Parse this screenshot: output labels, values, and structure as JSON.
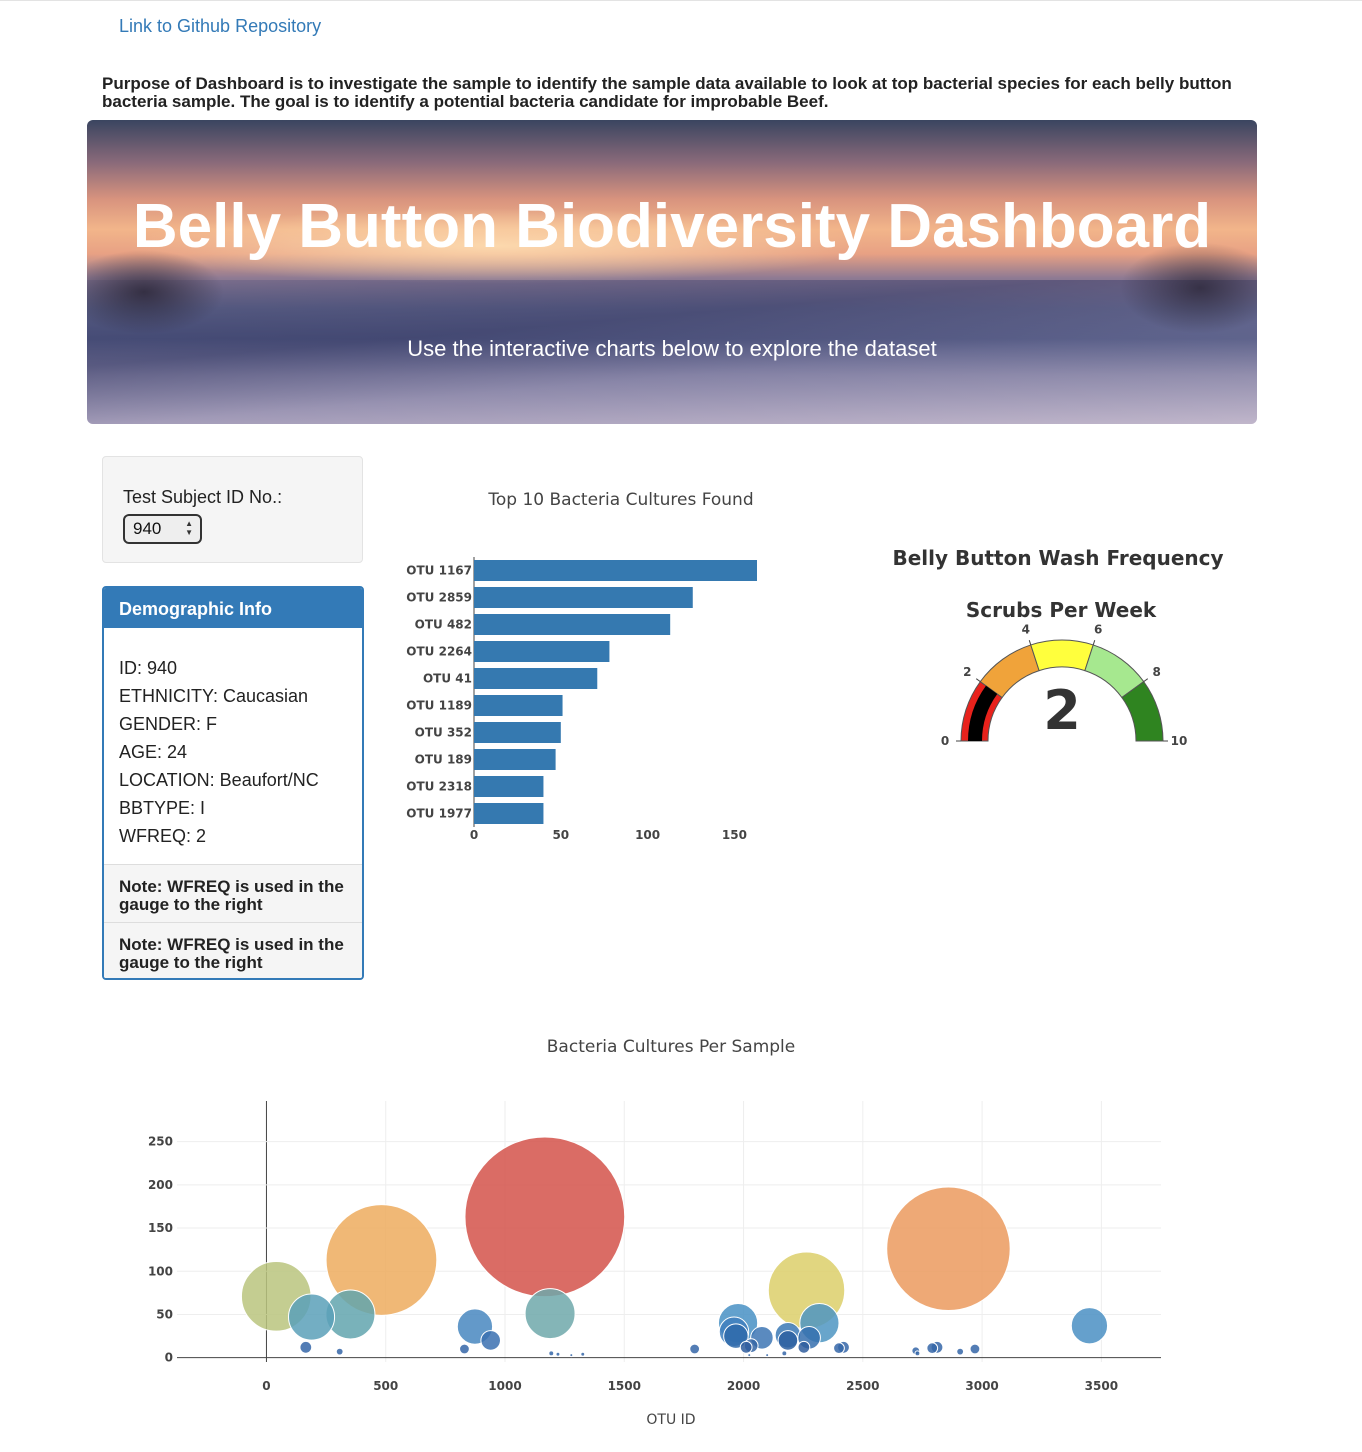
{
  "links": {
    "github": "Link to Github Repository"
  },
  "purpose": "Purpose of Dashboard is to investigate the sample to identify the sample data available to look at top bacterial species for each belly button bacteria sample. The goal is to identify a potential bacteria candidate for improbable Beef.",
  "hero": {
    "title": "Belly Button Biodiversity Dashboard",
    "subtitle": "Use the interactive charts below to explore the dataset"
  },
  "selector": {
    "label": "Test Subject ID No.:",
    "selected": "940"
  },
  "demographic": {
    "title": "Demographic Info",
    "lines": [
      "ID: 940",
      "ETHNICITY: Caucasian",
      "GENDER: F",
      "AGE: 24",
      "LOCATION: Beaufort/NC",
      "BBTYPE: I",
      "WFREQ: 2"
    ],
    "notes": [
      "Note: WFREQ is used in the gauge to the right",
      "Note: WFREQ is used in the gauge to the right"
    ]
  },
  "colors": {
    "accent": "#337ab7",
    "bar": "#3579b0",
    "link": "#337ab7"
  },
  "chart_data": [
    {
      "type": "bar",
      "orientation": "horizontal",
      "title": "Top 10 Bacteria Cultures Found",
      "categories": [
        "OTU 1167",
        "OTU 2859",
        "OTU 482",
        "OTU 2264",
        "OTU 41",
        "OTU 1189",
        "OTU 352",
        "OTU 189",
        "OTU 2318",
        "OTU 1977"
      ],
      "values": [
        163,
        126,
        113,
        78,
        71,
        51,
        50,
        47,
        40,
        40
      ],
      "xlim": [
        0,
        163
      ],
      "xticks": [
        0,
        50,
        100,
        150
      ]
    },
    {
      "type": "gauge",
      "title": "Belly Button Wash Frequency",
      "subtitle": "Scrubs Per Week",
      "value": 2,
      "range": [
        0,
        10
      ],
      "ticks": [
        0,
        2,
        4,
        6,
        8,
        10
      ],
      "steps": [
        {
          "range": [
            0,
            2
          ],
          "color": "#e8221c"
        },
        {
          "range": [
            2,
            4
          ],
          "color": "#f0a33a"
        },
        {
          "range": [
            4,
            6
          ],
          "color": "#ffff3d"
        },
        {
          "range": [
            6,
            8
          ],
          "color": "#a6e88f"
        },
        {
          "range": [
            8,
            10
          ],
          "color": "#2f8420"
        }
      ],
      "bar_color": "#000000"
    },
    {
      "type": "scatter",
      "title": "Bacteria Cultures Per Sample",
      "xlabel": "OTU ID",
      "ylabel": "",
      "xlim": [
        -375,
        3750
      ],
      "ylim": [
        -5,
        297
      ],
      "xticks": [
        0,
        500,
        1000,
        1500,
        2000,
        2500,
        3000,
        3500
      ],
      "yticks": [
        0,
        50,
        100,
        150,
        200,
        250
      ],
      "grid": true,
      "points": [
        {
          "x": 1167,
          "y": 163,
          "color": "#d3524a"
        },
        {
          "x": 2859,
          "y": 126,
          "color": "#eb9a5e"
        },
        {
          "x": 482,
          "y": 113,
          "color": "#edac5e"
        },
        {
          "x": 2264,
          "y": 78,
          "color": "#dccf6a"
        },
        {
          "x": 41,
          "y": 71,
          "color": "#bac47e"
        },
        {
          "x": 1189,
          "y": 51,
          "color": "#6fa8aa"
        },
        {
          "x": 352,
          "y": 50,
          "color": "#62a4ae"
        },
        {
          "x": 189,
          "y": 47,
          "color": "#5aa0b8"
        },
        {
          "x": 2318,
          "y": 40,
          "color": "#4d95c2"
        },
        {
          "x": 1977,
          "y": 40,
          "color": "#4890c4"
        },
        {
          "x": 3450,
          "y": 37,
          "color": "#4a8fc3"
        },
        {
          "x": 874,
          "y": 36,
          "color": "#4887c0"
        },
        {
          "x": 1960,
          "y": 30,
          "color": "#3f7fbd"
        },
        {
          "x": 1968,
          "y": 25,
          "color": "#2f6aaa"
        },
        {
          "x": 2186,
          "y": 26,
          "color": "#3a78b5"
        },
        {
          "x": 2275,
          "y": 23,
          "color": "#356fae"
        },
        {
          "x": 2077,
          "y": 23,
          "color": "#3d76b4"
        },
        {
          "x": 940,
          "y": 20,
          "color": "#3a70b0"
        },
        {
          "x": 2186,
          "y": 20,
          "color": "#2c5fa0"
        },
        {
          "x": 2032,
          "y": 14,
          "color": "#3565a5"
        },
        {
          "x": 2011,
          "y": 12,
          "color": "#2f5d9e"
        },
        {
          "x": 2253,
          "y": 12,
          "color": "#2f5d9e"
        },
        {
          "x": 2419,
          "y": 12,
          "color": "#3566a8"
        },
        {
          "x": 2811,
          "y": 12,
          "color": "#3566a8"
        },
        {
          "x": 2400,
          "y": 11,
          "color": "#3566a8"
        },
        {
          "x": 2791,
          "y": 11,
          "color": "#3566a8"
        },
        {
          "x": 2970,
          "y": 10,
          "color": "#3566a8"
        },
        {
          "x": 1795,
          "y": 10,
          "color": "#3566a8"
        },
        {
          "x": 165,
          "y": 12,
          "color": "#3566a8"
        },
        {
          "x": 830,
          "y": 10,
          "color": "#3566a8"
        },
        {
          "x": 2722,
          "y": 8,
          "color": "#3566a8"
        },
        {
          "x": 2908,
          "y": 7,
          "color": "#3566a8"
        },
        {
          "x": 307,
          "y": 7,
          "color": "#3566a8"
        },
        {
          "x": 2729,
          "y": 5,
          "color": "#3566a8"
        },
        {
          "x": 2171,
          "y": 5,
          "color": "#3566a8"
        },
        {
          "x": 1194,
          "y": 5,
          "color": "#3566a8"
        },
        {
          "x": 1222,
          "y": 4,
          "color": "#3566a8"
        },
        {
          "x": 1326,
          "y": 4,
          "color": "#3566a8"
        },
        {
          "x": 1278,
          "y": 3,
          "color": "#3566a8"
        },
        {
          "x": 2024,
          "y": 3,
          "color": "#3566a8"
        },
        {
          "x": 2099,
          "y": 3,
          "color": "#3566a8"
        }
      ]
    }
  ]
}
